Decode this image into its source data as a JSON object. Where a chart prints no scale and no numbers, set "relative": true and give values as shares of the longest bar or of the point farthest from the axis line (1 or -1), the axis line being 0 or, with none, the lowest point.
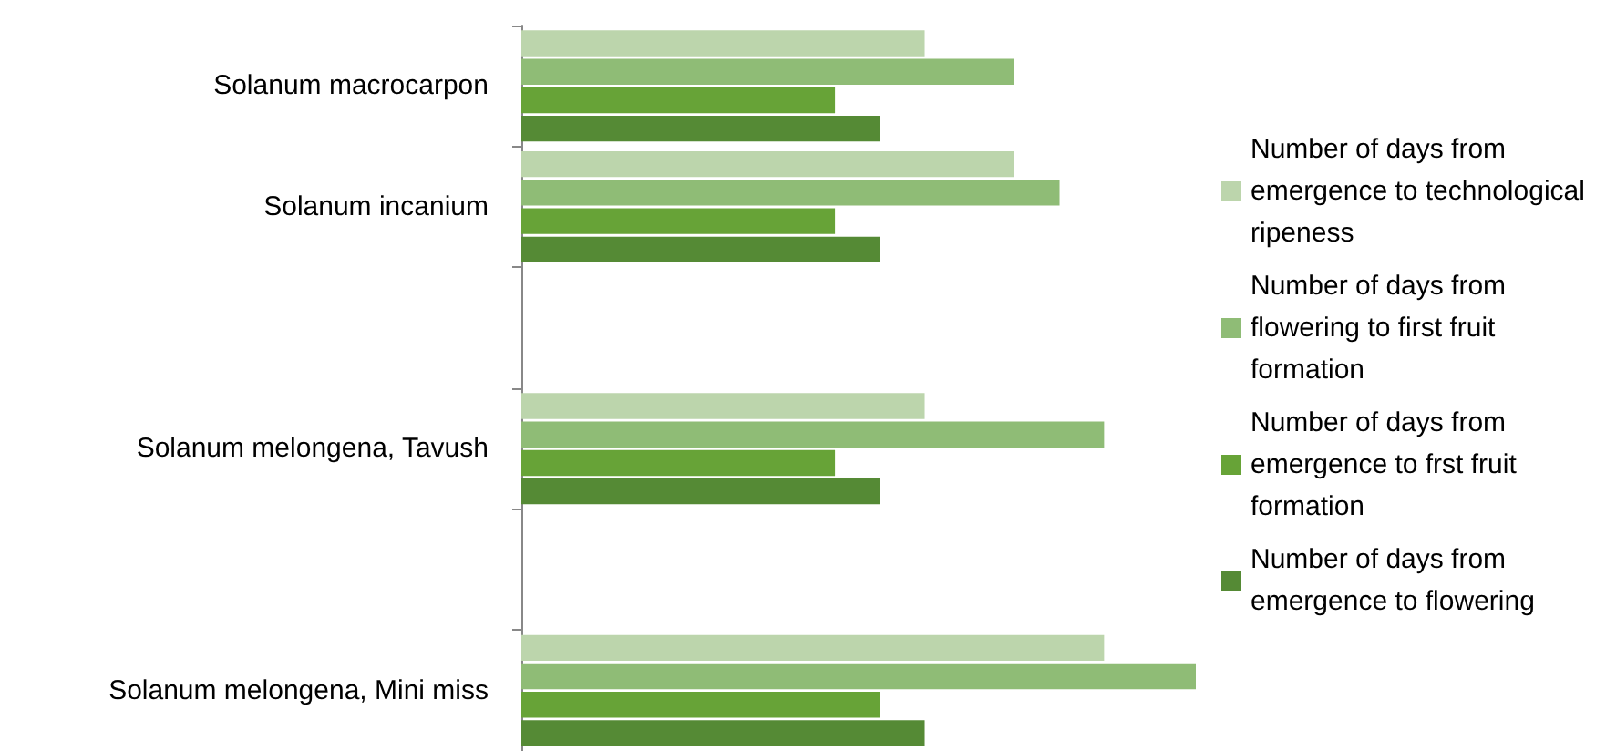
{
  "chart_data": {
    "type": "bar",
    "orientation": "horizontal",
    "relative": true,
    "legend": "right",
    "categories": [
      "Solanum macrocarpon",
      "Solanum incanium",
      null,
      "Solanum melongena, Tavush",
      null,
      "Solanum melongena, Mini miss"
    ],
    "series": [
      {
        "name": "Number of days from emergence to technological ripeness",
        "color": "#bcd5ac",
        "values": [
          0.598,
          0.731,
          null,
          0.598,
          null,
          0.864
        ]
      },
      {
        "name": "Number of days from flowering to first fruit formation",
        "color": "#8fbc76",
        "values": [
          0.731,
          0.798,
          null,
          0.864,
          null,
          1
        ]
      },
      {
        "name": "Number of days from emergence to frst fruit formation",
        "color": "#67a337",
        "values": [
          0.465,
          0.465,
          null,
          0.465,
          null,
          0.532
        ]
      },
      {
        "name": "Number of days from emergence to flowering",
        "color": "#558a35",
        "values": [
          0.532,
          0.532,
          null,
          0.532,
          null,
          0.598
        ]
      }
    ]
  }
}
